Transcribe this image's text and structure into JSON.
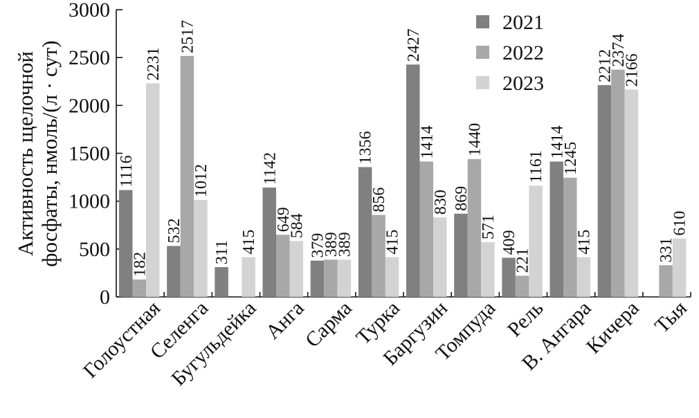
{
  "chart_data": {
    "type": "bar",
    "ylabel_line1": "Активность щелочной",
    "ylabel_line2": "фосфаты, нмоль/(л · сут)",
    "ylim": [
      0,
      3000
    ],
    "yticks": [
      0,
      500,
      1000,
      1500,
      2000,
      2500,
      3000
    ],
    "grid": false,
    "legend_position": "top-right",
    "categories": [
      "Голоустная",
      "Селенга",
      "Бугульдейка",
      "Анга",
      "Сарма",
      "Турка",
      "Баргузин",
      "Томпуда",
      "Рель",
      "В. Ангара",
      "Кичера",
      "Тыя"
    ],
    "series": [
      {
        "name": "2021",
        "color": "#808080",
        "values": [
          1116,
          532,
          311,
          1142,
          379,
          1356,
          2427,
          869,
          409,
          1414,
          2212,
          null
        ]
      },
      {
        "name": "2022",
        "color": "#a8a8a8",
        "values": [
          182,
          2517,
          null,
          649,
          389,
          856,
          1414,
          1440,
          221,
          1245,
          2374,
          331
        ]
      },
      {
        "name": "2023",
        "color": "#d3d3d3",
        "values": [
          2231,
          1012,
          415,
          584,
          389,
          415,
          830,
          571,
          1161,
          415,
          2166,
          610
        ]
      }
    ]
  }
}
